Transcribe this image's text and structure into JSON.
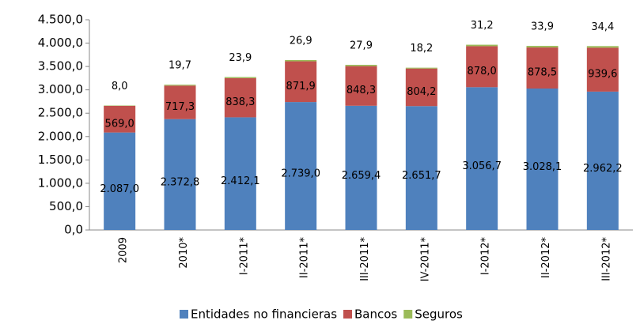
{
  "chart_data": {
    "type": "stacked_bar",
    "categories": [
      "2009",
      "2010*",
      "I-2011*",
      "II-2011*",
      "III-2011*",
      "IV-2011*",
      "I-2012*",
      "II-2012*",
      "III-2012*"
    ],
    "series": [
      {
        "name": "Entidades no financieras",
        "color": "#4f81bd",
        "values": [
          2087.0,
          2372.8,
          2412.1,
          2739.0,
          2659.4,
          2651.7,
          3056.7,
          3028.1,
          2962.2
        ],
        "value_labels": [
          "2.087,0",
          "2.372,8",
          "2.412,1",
          "2.739,0",
          "2.659,4",
          "2.651,7",
          "3.056,7",
          "3.028,1",
          "2.962,2"
        ]
      },
      {
        "name": "Bancos",
        "color": "#c0504d",
        "values": [
          569.0,
          717.3,
          838.3,
          871.9,
          848.3,
          804.2,
          878.0,
          878.5,
          939.6
        ],
        "value_labels": [
          "569,0",
          "717,3",
          "838,3",
          "871,9",
          "848,3",
          "804,2",
          "878,0",
          "878,5",
          "939,6"
        ]
      },
      {
        "name": "Seguros",
        "color": "#9bbb59",
        "values": [
          8.0,
          19.7,
          23.9,
          26.9,
          27.9,
          18.2,
          31.2,
          33.9,
          34.4
        ],
        "value_labels": [
          "8,0",
          "19,7",
          "23,9",
          "26,9",
          "27,9",
          "18,2",
          "31,2",
          "33,9",
          "34,4"
        ]
      }
    ],
    "ylim": [
      0,
      4500
    ],
    "yticks": [
      {
        "value": 0,
        "label": "0,0"
      },
      {
        "value": 500,
        "label": "500,0"
      },
      {
        "value": 1000,
        "label": "1.000,0"
      },
      {
        "value": 1500,
        "label": "1.500,0"
      },
      {
        "value": 2000,
        "label": "2.000,0"
      },
      {
        "value": 2500,
        "label": "2.500,0"
      },
      {
        "value": 3000,
        "label": "3.000,0"
      },
      {
        "value": 3500,
        "label": "3.500,0"
      },
      {
        "value": 4000,
        "label": "4.000,0"
      },
      {
        "value": 4500,
        "label": "4.500,0"
      }
    ],
    "legend": "bottom"
  }
}
